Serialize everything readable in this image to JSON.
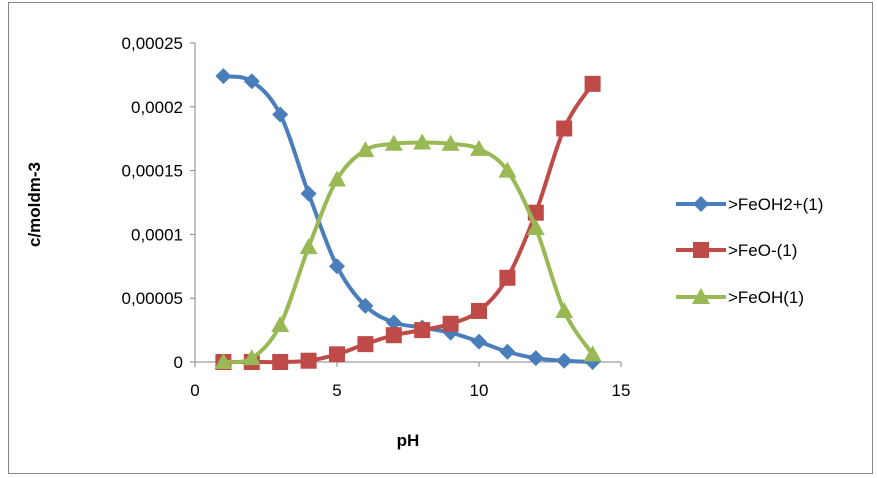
{
  "chart_data": {
    "type": "scatter",
    "subtype": "smooth-line-with-markers",
    "title": "",
    "xlabel": "pH",
    "ylabel": "c/moldm-3",
    "xlim": [
      0,
      15
    ],
    "ylim": [
      0,
      0.00025
    ],
    "xticks": [
      0,
      5,
      10,
      15
    ],
    "xtick_labels": [
      "0",
      "5",
      "10",
      "15"
    ],
    "yticks": [
      0,
      5e-05,
      0.0001,
      0.00015,
      0.0002,
      0.00025
    ],
    "ytick_labels": [
      "0",
      "0,00005",
      "0,0001",
      "0,00015",
      "0,0002",
      "0,00025"
    ],
    "grid": false,
    "legend_position": "right",
    "x": [
      1,
      2,
      3,
      4,
      5,
      6,
      7,
      8,
      9,
      10,
      11,
      12,
      13,
      14
    ],
    "series": [
      {
        "name": ">FeOH2+(1)",
        "color": "#4a7ebb",
        "marker": "diamond",
        "values": [
          0.000224,
          0.00022,
          0.000194,
          0.000132,
          7.5e-05,
          4.4e-05,
          3.1e-05,
          2.7e-05,
          2.3e-05,
          1.6e-05,
          8e-06,
          3e-06,
          1e-06,
          0.0
        ]
      },
      {
        "name": ">FeO-(1)",
        "color": "#be4b48",
        "marker": "square",
        "values": [
          0.0,
          0.0,
          0.0,
          1e-06,
          6e-06,
          1.4e-05,
          2.1e-05,
          2.5e-05,
          3e-05,
          4e-05,
          6.6e-05,
          0.000117,
          0.000183,
          0.000218
        ]
      },
      {
        "name": ">FeOH(1)",
        "color": "#98b954",
        "marker": "triangle",
        "values": [
          0.0,
          3e-06,
          2.9e-05,
          9e-05,
          0.000143,
          0.000166,
          0.000171,
          0.000172,
          0.000171,
          0.000167,
          0.00015,
          0.000105,
          4e-05,
          6e-06
        ]
      }
    ]
  }
}
